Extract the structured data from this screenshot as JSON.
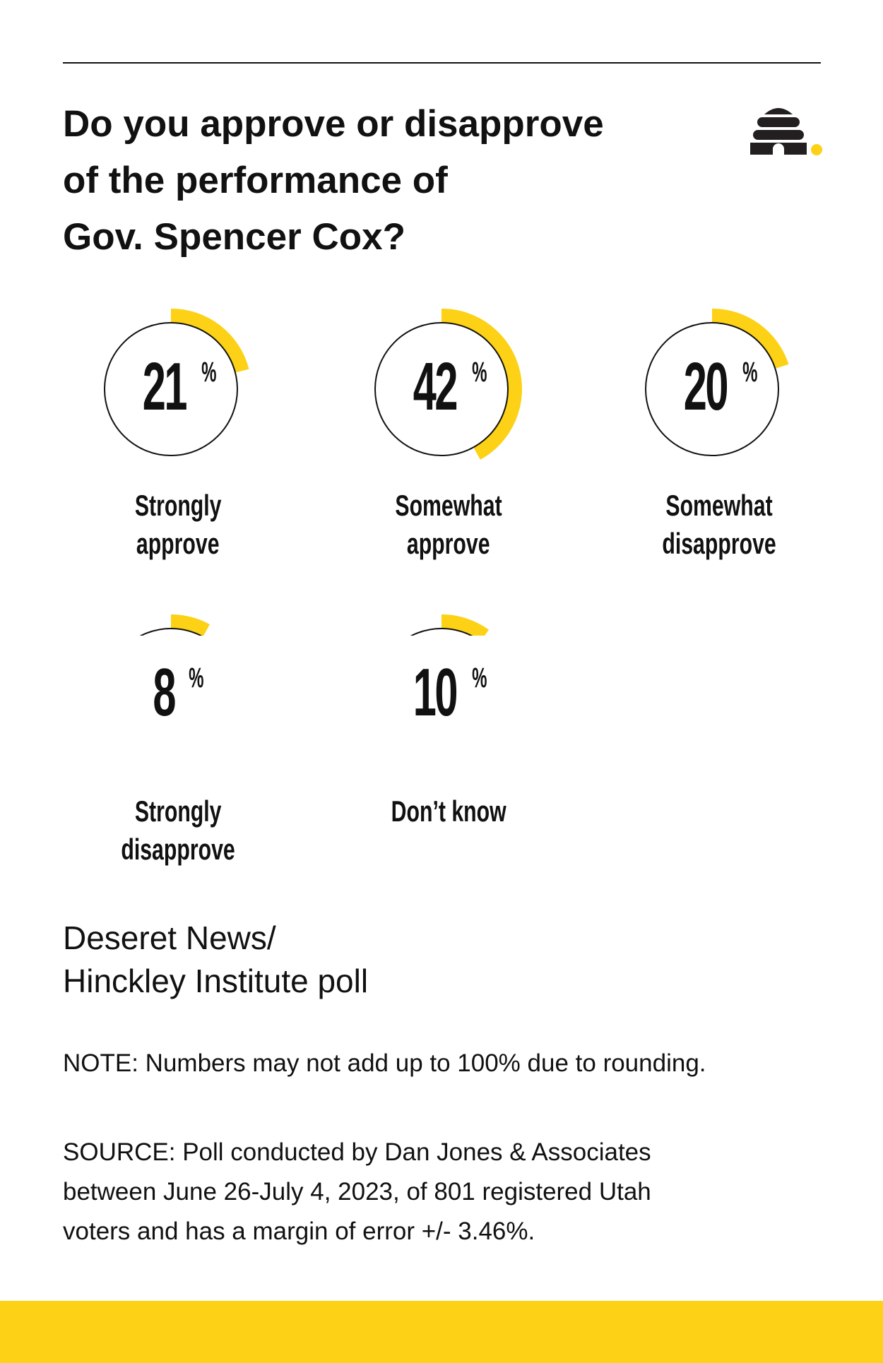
{
  "title": [
    "Do you approve or disapprove",
    "of the performance of",
    "Gov. Spencer Cox?"
  ],
  "logo": {
    "icon": "beehive-icon",
    "dot_color": "#FCD116"
  },
  "colors": {
    "accent": "#FCD116",
    "text": "#111111"
  },
  "chart_data": {
    "type": "radial-progress",
    "unit": "%",
    "items": [
      {
        "label": [
          "Strongly",
          "approve"
        ],
        "value": 21
      },
      {
        "label": [
          "Somewhat",
          "approve"
        ],
        "value": 42
      },
      {
        "label": [
          "Somewhat",
          "disapprove"
        ],
        "value": 20
      },
      {
        "label": [
          "Strongly",
          "disapprove"
        ],
        "value": 8
      },
      {
        "label": [
          "Don’t know"
        ],
        "value": 10
      }
    ]
  },
  "source_title": [
    "Deseret News/",
    "Hinckley Institute poll"
  ],
  "note": "NOTE: Numbers may not add up to 100% due to rounding.",
  "source": [
    "SOURCE: Poll conducted by Dan Jones & Associates",
    "between June 26-July 4, 2023, of 801 registered Utah",
    "voters and has a margin of error +/- 3.46%."
  ]
}
